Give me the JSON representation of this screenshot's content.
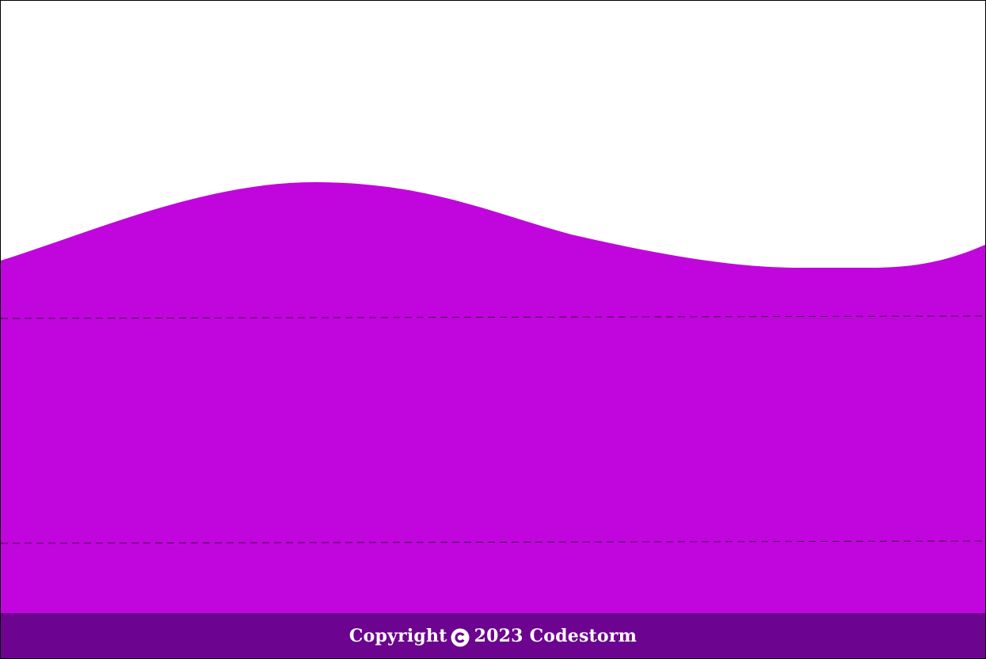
{
  "footer": {
    "copyright_label": "Copyright",
    "copyright_icon": "copyright-icon",
    "year": "2023",
    "brand": "Codestorm"
  },
  "colors": {
    "wave": "#c006dc",
    "footer_bg": "#6c048f",
    "dashed_line": "#3a0a3f",
    "background": "#ffffff"
  }
}
